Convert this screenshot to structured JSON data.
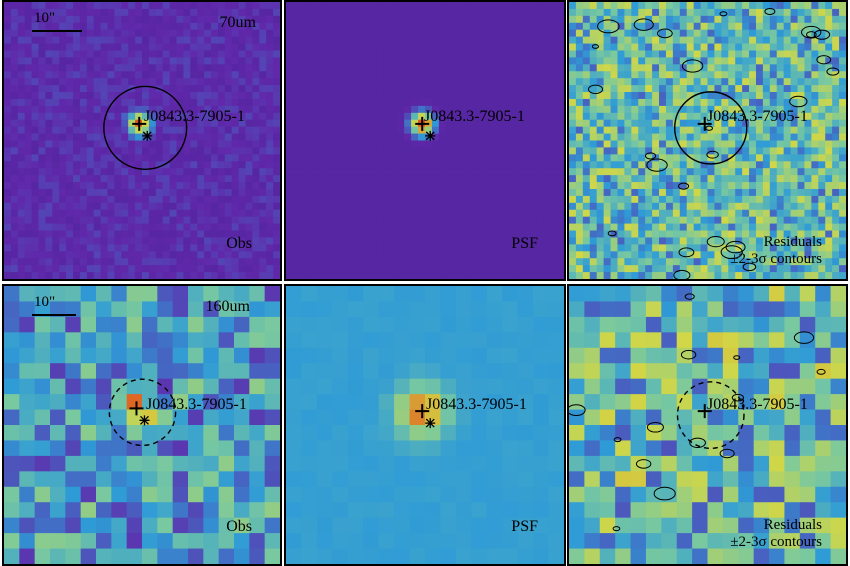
{
  "figure": {
    "rows": [
      {
        "band": "70um",
        "scale_label": "10\"",
        "source": "J0843.3-7905-1",
        "panels": {
          "obs": "Obs",
          "psf": "PSF",
          "residuals": "Residuals",
          "contours": "±2-3σ contours"
        }
      },
      {
        "band": "160um",
        "scale_label": "10\"",
        "source": "J0843.3-7905-1",
        "panels": {
          "obs": "Obs",
          "psf": "PSF",
          "residuals": "Residuals",
          "contours": "±2-3σ contours"
        }
      }
    ],
    "colormap": {
      "low": "#3b1f8c",
      "mid": "#2f9bd6",
      "high_mid": "#b8d24a",
      "peak": "#e05a1f"
    }
  }
}
